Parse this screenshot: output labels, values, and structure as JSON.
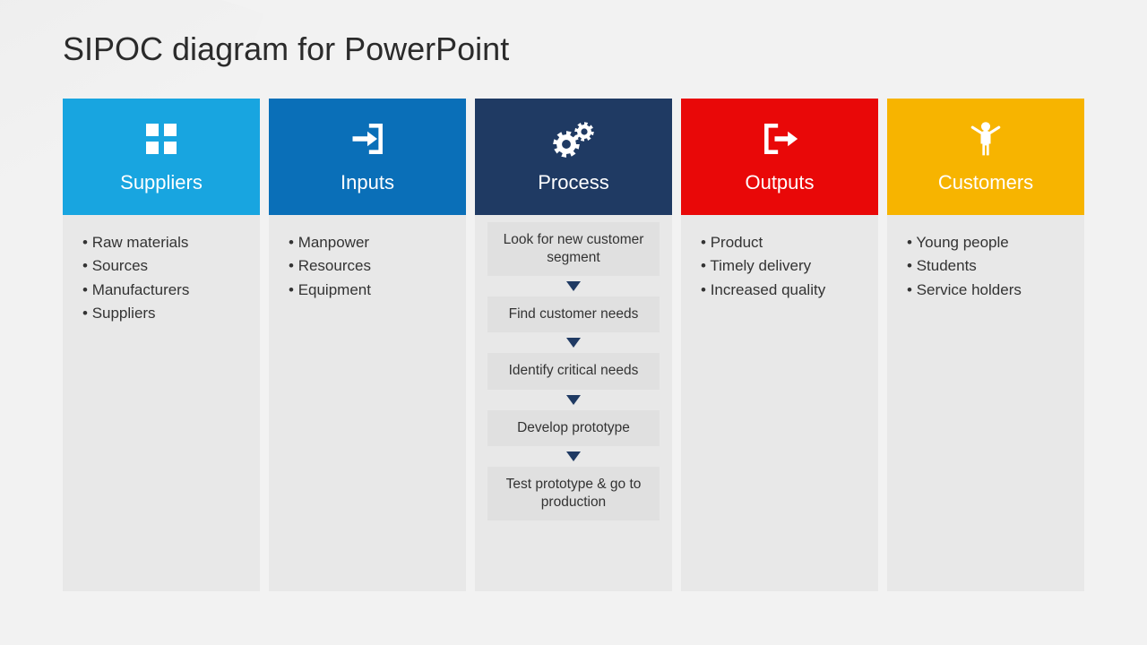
{
  "title": "SIPOC diagram for PowerPoint",
  "background_color": "#f2f2f2",
  "column_body_bg": "#e8e8e8",
  "step_bg": "#e0e0e0",
  "arrow_color": "#1f3a63",
  "text_color": "#333333",
  "title_color": "#2b2b2b",
  "title_fontsize": 36,
  "header_fontsize": 22,
  "body_fontsize": 17,
  "columns": [
    {
      "key": "suppliers",
      "label": "Suppliers",
      "header_color": "#18a5e0",
      "icon": "grid",
      "type": "bullets",
      "items": [
        "Raw materials",
        "Sources",
        "Manufacturers",
        "Suppliers"
      ]
    },
    {
      "key": "inputs",
      "label": "Inputs",
      "header_color": "#0a6fb8",
      "icon": "login",
      "type": "bullets",
      "items": [
        "Manpower",
        "Resources",
        "Equipment"
      ]
    },
    {
      "key": "process",
      "label": "Process",
      "header_color": "#1f3a63",
      "icon": "gears",
      "type": "flow",
      "steps": [
        "Look for new customer segment",
        "Find customer needs",
        "Identify critical needs",
        "Develop prototype",
        "Test prototype & go to production"
      ]
    },
    {
      "key": "outputs",
      "label": "Outputs",
      "header_color": "#e90808",
      "icon": "logout",
      "type": "bullets",
      "items": [
        "Product",
        "Timely delivery",
        "Increased quality"
      ]
    },
    {
      "key": "customers",
      "label": "Customers",
      "header_color": "#f7b400",
      "icon": "person",
      "type": "bullets",
      "items": [
        "Young people",
        "Students",
        "Service holders"
      ]
    }
  ]
}
